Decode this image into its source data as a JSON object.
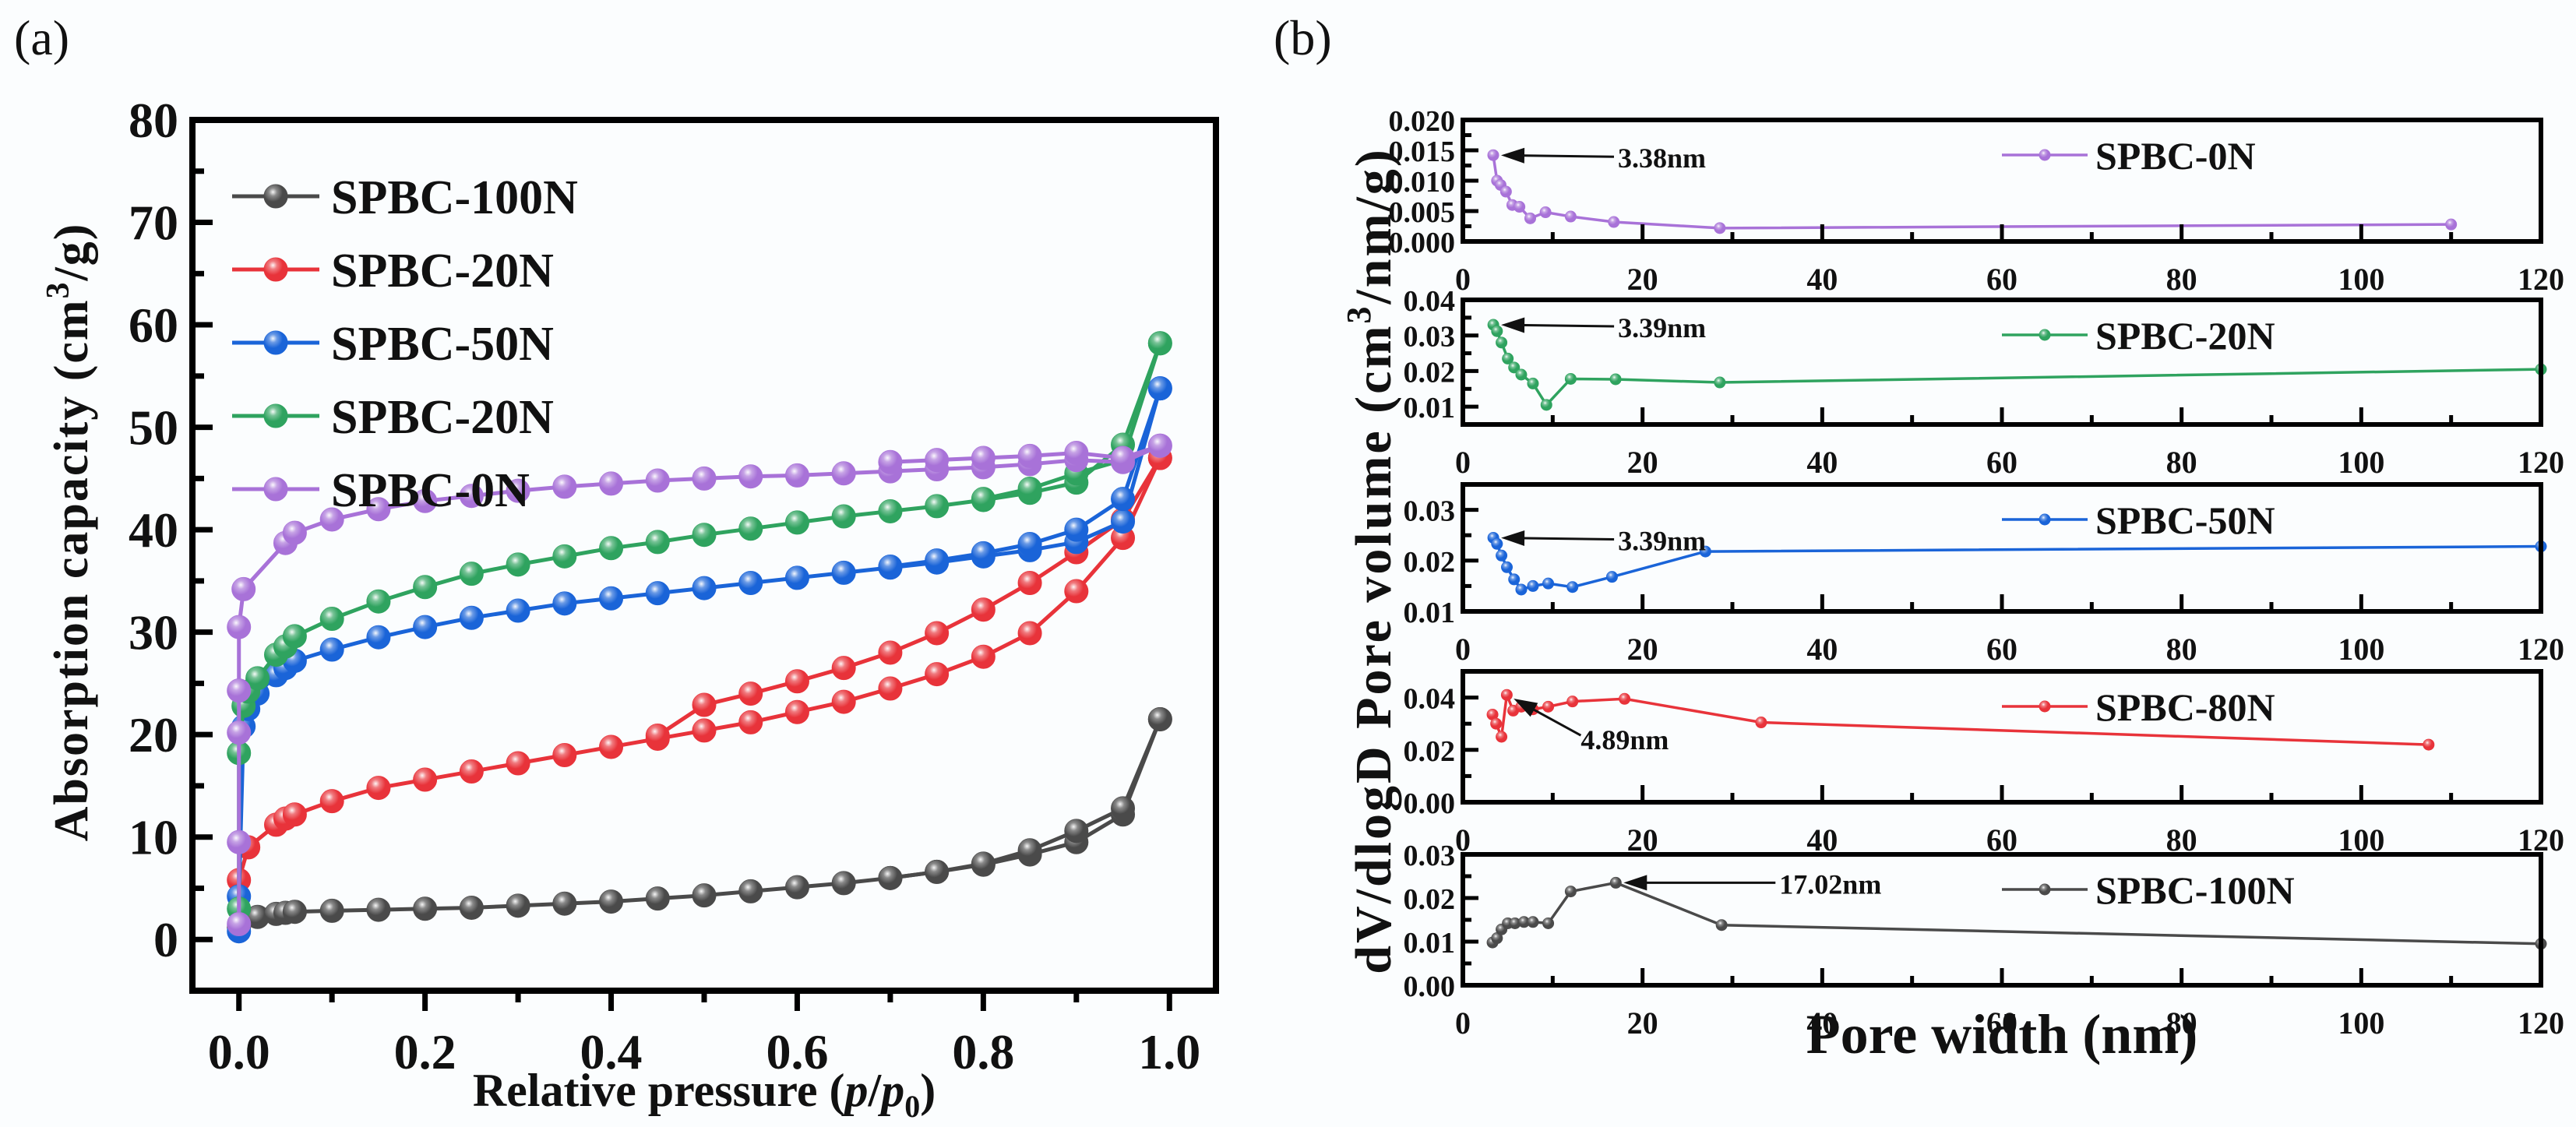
{
  "chart_data": [
    {
      "id": "a",
      "panel_label": "(a)",
      "type": "line",
      "title": "",
      "xlabel_parts": [
        "Relative pressure (",
        "p",
        "/",
        "p",
        "0",
        ")"
      ],
      "xlabel": "Relative pressure (p/p0)",
      "ylabel": "Absorption capacity (cm3/g)",
      "ylabel_parts": [
        "Absorption capacity (cm",
        "3",
        "/g)"
      ],
      "xlim": [
        -0.05,
        1.05
      ],
      "ylim": [
        -5,
        80
      ],
      "xticks": [
        0.0,
        0.2,
        0.4,
        0.6,
        0.8,
        1.0
      ],
      "xtick_labels": [
        "0.0",
        "0.2",
        "0.4",
        "0.6",
        "0.8",
        "1.0"
      ],
      "yticks": [
        0,
        10,
        20,
        30,
        40,
        50,
        60,
        70,
        80
      ],
      "ytick_labels": [
        "0",
        "10",
        "20",
        "30",
        "40",
        "50",
        "60",
        "70",
        "80"
      ],
      "grid": false,
      "legend_position": "top-left",
      "series": [
        {
          "name": "SPBC-100N",
          "color": "#4a4a4a",
          "adsorption": {
            "x": [
              0.0,
              0.02,
              0.04,
              0.05,
              0.06,
              0.1,
              0.15,
              0.2,
              0.25,
              0.3,
              0.35,
              0.4,
              0.45,
              0.5,
              0.55,
              0.6,
              0.65,
              0.7,
              0.75,
              0.8,
              0.85,
              0.9,
              0.95,
              0.99
            ],
            "y": [
              1.2,
              2.2,
              2.5,
              2.6,
              2.7,
              2.8,
              2.9,
              3.0,
              3.1,
              3.3,
              3.5,
              3.7,
              4.0,
              4.3,
              4.7,
              5.1,
              5.5,
              6.0,
              6.6,
              7.3,
              8.3,
              9.5,
              12.2,
              21.5
            ]
          },
          "desorption": {
            "x": [
              0.99,
              0.95,
              0.9,
              0.85,
              0.8,
              0.75,
              0.7
            ],
            "y": [
              21.5,
              12.8,
              10.6,
              8.7,
              7.4,
              6.6,
              6.0
            ]
          }
        },
        {
          "name": "SPBC-20N",
          "color": "#e8333a",
          "adsorption": {
            "x": [
              0.0,
              0.01,
              0.04,
              0.05,
              0.06,
              0.1,
              0.15,
              0.2,
              0.25,
              0.3,
              0.35,
              0.4,
              0.45,
              0.5,
              0.55,
              0.6,
              0.65,
              0.7,
              0.75,
              0.8,
              0.85,
              0.9,
              0.95,
              0.99
            ],
            "y": [
              5.8,
              9.0,
              11.2,
              11.8,
              12.2,
              13.5,
              14.8,
              15.6,
              16.4,
              17.2,
              18.0,
              18.8,
              19.6,
              20.4,
              21.2,
              22.2,
              23.2,
              24.5,
              25.9,
              27.6,
              29.9,
              34.0,
              39.2,
              47.0
            ]
          },
          "desorption": {
            "x": [
              0.99,
              0.95,
              0.9,
              0.85,
              0.8,
              0.75,
              0.7,
              0.65,
              0.6,
              0.55,
              0.5,
              0.45
            ],
            "y": [
              47.0,
              41.0,
              37.8,
              34.8,
              32.2,
              29.9,
              28.0,
              26.5,
              25.2,
              24.0,
              22.9,
              19.9
            ]
          }
        },
        {
          "name": "SPBC-50N",
          "color": "#1a64d8",
          "adsorption": {
            "x": [
              0.0,
              0.0,
              0.005,
              0.01,
              0.02,
              0.04,
              0.05,
              0.06,
              0.1,
              0.15,
              0.2,
              0.25,
              0.3,
              0.35,
              0.4,
              0.45,
              0.5,
              0.55,
              0.6,
              0.65,
              0.7,
              0.75,
              0.8,
              0.85,
              0.9,
              0.95,
              0.99
            ],
            "y": [
              0.8,
              4.2,
              20.8,
              22.5,
              24.0,
              25.8,
              26.5,
              27.2,
              28.3,
              29.5,
              30.5,
              31.4,
              32.1,
              32.8,
              33.3,
              33.8,
              34.3,
              34.8,
              35.3,
              35.8,
              36.3,
              36.8,
              37.4,
              38.0,
              38.8,
              40.8,
              53.8
            ]
          },
          "desorption": {
            "x": [
              0.99,
              0.95,
              0.9,
              0.85,
              0.8,
              0.75,
              0.7
            ],
            "y": [
              53.8,
              43.0,
              40.0,
              38.6,
              37.7,
              37.0,
              36.4
            ]
          }
        },
        {
          "name": "SPBC-20N",
          "color": "#2fa35f",
          "adsorption": {
            "x": [
              0.0,
              0.0,
              0.005,
              0.01,
              0.02,
              0.04,
              0.05,
              0.06,
              0.1,
              0.15,
              0.2,
              0.25,
              0.3,
              0.35,
              0.4,
              0.45,
              0.5,
              0.55,
              0.6,
              0.65,
              0.7,
              0.75,
              0.8,
              0.85,
              0.9,
              0.95,
              0.99
            ],
            "y": [
              3.0,
              18.2,
              22.8,
              24.2,
              25.5,
              27.8,
              28.6,
              29.6,
              31.3,
              33.0,
              34.4,
              35.7,
              36.6,
              37.4,
              38.2,
              38.8,
              39.5,
              40.1,
              40.7,
              41.3,
              41.8,
              42.3,
              42.9,
              43.6,
              44.6,
              48.3,
              58.2
            ]
          },
          "desorption": {
            "x": [
              0.99,
              0.95,
              0.9,
              0.85,
              0.8
            ],
            "y": [
              58.2,
              46.8,
              45.5,
              44.0,
              43.0
            ]
          }
        },
        {
          "name": "SPBC-0N",
          "color": "#a872d8",
          "adsorption": {
            "x": [
              0.0,
              0.0,
              0.0,
              0.0,
              0.0,
              0.005,
              0.05,
              0.06,
              0.1,
              0.15,
              0.2,
              0.25,
              0.3,
              0.35,
              0.4,
              0.45,
              0.5,
              0.55,
              0.6,
              0.65,
              0.7,
              0.75,
              0.8,
              0.85,
              0.9,
              0.95,
              0.99
            ],
            "y": [
              1.5,
              9.5,
              20.2,
              24.3,
              30.5,
              34.2,
              38.7,
              39.7,
              41.0,
              42.0,
              42.8,
              43.3,
              43.8,
              44.2,
              44.5,
              44.8,
              45.0,
              45.2,
              45.3,
              45.5,
              45.7,
              45.9,
              46.1,
              46.4,
              46.8,
              46.6,
              48.2
            ]
          },
          "desorption": {
            "x": [
              0.99,
              0.95,
              0.9,
              0.85,
              0.8,
              0.75,
              0.7
            ],
            "y": [
              48.2,
              47.0,
              47.5,
              47.2,
              47.0,
              46.8,
              46.6
            ]
          }
        }
      ]
    },
    {
      "id": "b",
      "panel_label": "(b)",
      "type": "line",
      "xlabel": "Pore width (nm)",
      "ylabel": "dV/dlogD Pore volume (cm3/nm/g)",
      "ylabel_parts": [
        "dV/dlogD Pore volume (cm",
        "3",
        "/nm/g)"
      ],
      "shared_xlim": [
        0,
        120
      ],
      "xticks": [
        0,
        20,
        40,
        60,
        80,
        100,
        120
      ],
      "xtick_labels": [
        "0",
        "20",
        "40",
        "60",
        "80",
        "100",
        "120"
      ],
      "grid": false,
      "legend_position": "top-right",
      "subplots": [
        {
          "name": "SPBC-0N",
          "color": "#a872d8",
          "ylim": [
            0.0,
            0.02
          ],
          "yticks": [
            0.0,
            0.005,
            0.01,
            0.015,
            0.02
          ],
          "ytick_labels": [
            "0.000",
            "0.005",
            "0.010",
            "0.015",
            "0.020"
          ],
          "x": [
            3.38,
            3.8,
            4.2,
            4.8,
            5.5,
            6.3,
            7.5,
            9.2,
            12.0,
            16.8,
            28.6,
            110.0
          ],
          "y": [
            0.0142,
            0.01,
            0.0093,
            0.0082,
            0.006,
            0.0057,
            0.0038,
            0.0048,
            0.0041,
            0.0032,
            0.0022,
            0.0028
          ],
          "annotation": {
            "text": "3.38nm",
            "x": 3.38,
            "y": 0.0142
          }
        },
        {
          "name": "SPBC-20N",
          "color": "#2fa35f",
          "ylim": [
            0.005,
            0.04
          ],
          "yticks": [
            0.01,
            0.02,
            0.03,
            0.04
          ],
          "ytick_labels": [
            "0.01",
            "0.02",
            "0.03",
            "0.04"
          ],
          "x": [
            3.39,
            3.8,
            4.3,
            5.0,
            5.7,
            6.5,
            7.8,
            9.3,
            12.0,
            17.0,
            28.6,
            120.0
          ],
          "y": [
            0.033,
            0.0312,
            0.028,
            0.0235,
            0.021,
            0.019,
            0.0165,
            0.0105,
            0.0178,
            0.0177,
            0.0168,
            0.0205
          ],
          "annotation": {
            "text": "3.39nm",
            "x": 3.39,
            "y": 0.033
          }
        },
        {
          "name": "SPBC-50N",
          "color": "#1a64d8",
          "ylim": [
            0.01,
            0.035
          ],
          "yticks": [
            0.01,
            0.02,
            0.03
          ],
          "ytick_labels": [
            "0.01",
            "0.02",
            "0.03"
          ],
          "x": [
            3.39,
            3.8,
            4.3,
            4.9,
            5.7,
            6.5,
            7.8,
            9.5,
            12.2,
            16.6,
            27.0,
            120.0
          ],
          "y": [
            0.0245,
            0.0233,
            0.021,
            0.0187,
            0.0163,
            0.0143,
            0.015,
            0.0155,
            0.0148,
            0.0168,
            0.0218,
            0.0228
          ],
          "annotation": {
            "text": "3.39nm",
            "x": 3.39,
            "y": 0.0245
          }
        },
        {
          "name": "SPBC-80N",
          "color": "#e8333a",
          "ylim": [
            0.0,
            0.05
          ],
          "yticks": [
            0.0,
            0.02,
            0.04
          ],
          "ytick_labels": [
            "0.00",
            "0.02",
            "0.04"
          ],
          "x": [
            3.3,
            3.7,
            4.3,
            4.89,
            5.6,
            6.5,
            7.8,
            9.5,
            12.2,
            18.0,
            33.2,
            107.5
          ],
          "y": [
            0.0335,
            0.03,
            0.025,
            0.041,
            0.035,
            0.0365,
            0.0355,
            0.0365,
            0.0385,
            0.0395,
            0.0305,
            0.022
          ],
          "annotation": {
            "text": "4.89nm",
            "x": 4.89,
            "y": 0.041
          }
        },
        {
          "name": "SPBC-100N",
          "color": "#4a4a4a",
          "ylim": [
            0.0,
            0.03
          ],
          "yticks": [
            0.0,
            0.01,
            0.02,
            0.03
          ],
          "ytick_labels": [
            "0.00",
            "0.01",
            "0.02",
            "0.03"
          ],
          "x": [
            3.3,
            3.8,
            4.3,
            5.0,
            5.8,
            6.8,
            7.8,
            9.5,
            12.0,
            17.02,
            28.8,
            120.0
          ],
          "y": [
            0.0098,
            0.0108,
            0.0128,
            0.0142,
            0.0142,
            0.0145,
            0.0145,
            0.0142,
            0.0215,
            0.0235,
            0.0138,
            0.0095
          ],
          "annotation": {
            "text": "17.02nm",
            "x": 17.02,
            "y": 0.0235
          }
        }
      ]
    }
  ]
}
